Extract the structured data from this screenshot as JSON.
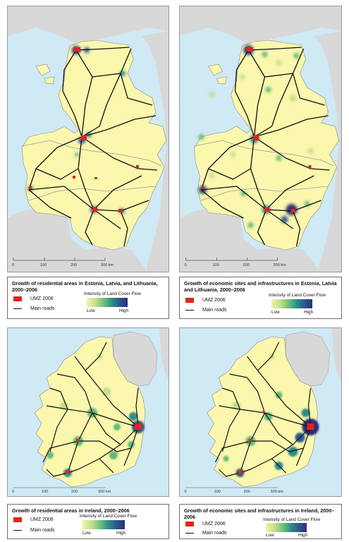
{
  "legend": {
    "umz_label": "UMZ 2006",
    "roads_label": "Main roads",
    "intensity_title": "Intensity of Land Cover Flow",
    "low_label": "Low",
    "high_label": "High"
  },
  "baltic_scale": {
    "labels": [
      "0",
      "100",
      "200",
      "300 km"
    ]
  },
  "ireland_scale": {
    "labels": [
      "0",
      "100",
      "200",
      "300 km"
    ]
  },
  "panels": [
    {
      "title": "Growth of residential areas in Estonia, Latvia, and Lithuania, 2000–2006"
    },
    {
      "title": "Growth of economic sites and infrastructures in Estonia, Latvia and Lithuania, 2000–2006"
    },
    {
      "title": "Growth of residential areas in Ireland, 2000–2006"
    },
    {
      "title": "Growth of economic sites and infrastructures in Ireland, 2000–2006"
    }
  ],
  "colors": {
    "land": "#fbf7ad",
    "sea": "#cfe9f5",
    "neighbour": "#d8d8d8",
    "umz": "#e0241f",
    "road": "#111111"
  }
}
